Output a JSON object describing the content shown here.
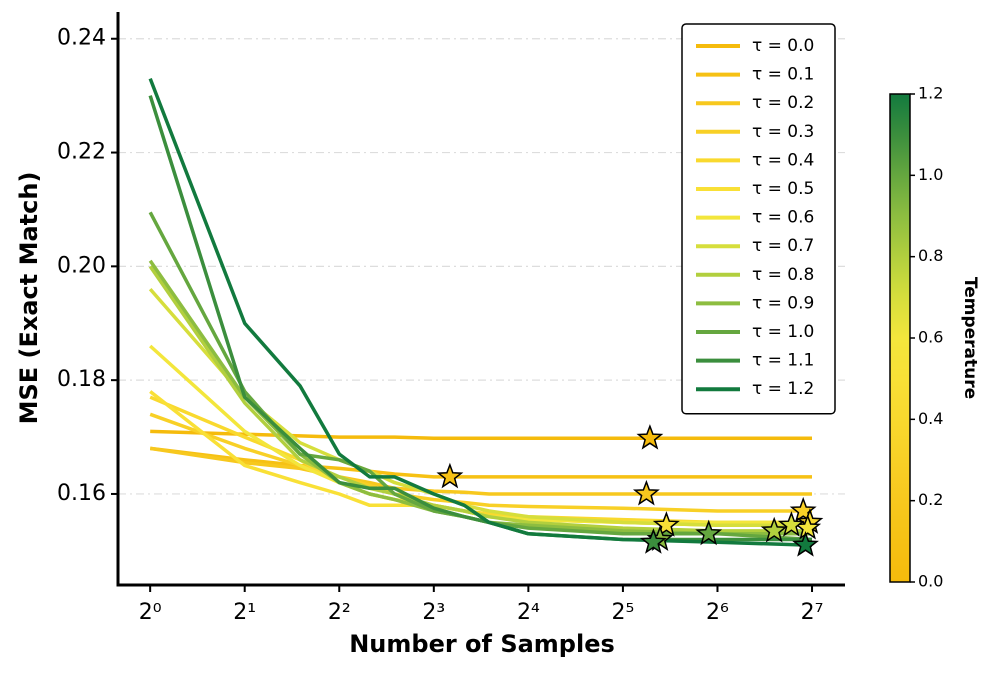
{
  "chart_data": {
    "type": "line",
    "xlabel": "Number of Samples",
    "ylabel": "MSE (Exact Match)",
    "log_x": 2,
    "grid": true,
    "legend": "upper right",
    "x": [
      1,
      2,
      3,
      4,
      5,
      6,
      8,
      10,
      12,
      16,
      32,
      64,
      128
    ],
    "xlim": [
      0.79,
      163
    ],
    "xticks": [
      {
        "value": 1,
        "label": "2⁰"
      },
      {
        "value": 2,
        "label": "2¹"
      },
      {
        "value": 4,
        "label": "2²"
      },
      {
        "value": 8,
        "label": "2³"
      },
      {
        "value": 16,
        "label": "2⁴"
      },
      {
        "value": 32,
        "label": "2⁵"
      },
      {
        "value": 64,
        "label": "2⁶"
      },
      {
        "value": 128,
        "label": "2⁷"
      }
    ],
    "ylim": [
      0.144,
      0.2447
    ],
    "yticks": [
      0.16,
      0.18,
      {
        "value": 0.2,
        "label": "0.20"
      },
      0.22,
      0.24
    ],
    "series": [
      {
        "name": "τ = 0.0",
        "color": "#f5bb0c",
        "values": [
          0.171,
          0.1705,
          0.1702,
          0.17,
          0.17,
          0.17,
          0.1698,
          0.1698,
          0.1698,
          0.1698,
          0.1698,
          0.1698,
          0.1698
        ],
        "star_x": 39,
        "star_y": 0.1698
      },
      {
        "name": "τ = 0.1",
        "color": "#f6c114",
        "values": [
          0.168,
          0.166,
          0.165,
          0.1645,
          0.164,
          0.1635,
          0.163,
          0.163,
          0.163,
          0.163,
          0.163,
          0.163,
          0.163
        ],
        "star_x": 9,
        "star_y": 0.163
      },
      {
        "name": "τ = 0.2",
        "color": "#f7c81e",
        "values": [
          0.168,
          0.1655,
          0.1645,
          0.163,
          0.162,
          0.161,
          0.1605,
          0.1603,
          0.16,
          0.16,
          0.16,
          0.16,
          0.16
        ],
        "star_x": 38,
        "star_y": 0.16
      },
      {
        "name": "τ = 0.3",
        "color": "#f8d026",
        "values": [
          0.174,
          0.168,
          0.165,
          0.163,
          0.1615,
          0.16,
          0.159,
          0.1585,
          0.158,
          0.1578,
          0.1575,
          0.157,
          0.157
        ],
        "star_x": 120,
        "star_y": 0.157
      },
      {
        "name": "τ = 0.4",
        "color": "#f9d92e",
        "values": [
          0.177,
          0.17,
          0.166,
          0.162,
          0.16,
          0.159,
          0.158,
          0.157,
          0.1565,
          0.156,
          0.1555,
          0.155,
          0.155
        ],
        "star_x": 126,
        "star_y": 0.155
      },
      {
        "name": "τ = 0.5",
        "color": "#f9e036",
        "values": [
          0.178,
          0.165,
          0.162,
          0.16,
          0.158,
          0.158,
          0.158,
          0.157,
          0.156,
          0.1555,
          0.155,
          0.1545,
          0.1545
        ],
        "star_x": 44,
        "star_y": 0.1545
      },
      {
        "name": "τ = 0.6",
        "color": "#f3e63c",
        "values": [
          0.186,
          0.171,
          0.165,
          0.162,
          0.16,
          0.159,
          0.158,
          0.157,
          0.156,
          0.1555,
          0.155,
          0.155,
          0.155
        ],
        "star_x": 124,
        "star_y": 0.154
      },
      {
        "name": "τ = 0.7",
        "color": "#d6de3c",
        "values": [
          0.196,
          0.177,
          0.169,
          0.166,
          0.164,
          0.162,
          0.16,
          0.158,
          0.157,
          0.156,
          0.155,
          0.1545,
          0.1545
        ],
        "star_x": 110,
        "star_y": 0.1545
      },
      {
        "name": "τ = 0.8",
        "color": "#b2cf3e",
        "values": [
          0.2,
          0.176,
          0.166,
          0.163,
          0.161,
          0.16,
          0.158,
          0.157,
          0.156,
          0.155,
          0.154,
          0.1535,
          0.1535
        ],
        "star_x": 97,
        "star_y": 0.1535
      },
      {
        "name": "τ = 0.9",
        "color": "#8dbd40",
        "values": [
          0.201,
          0.177,
          0.167,
          0.162,
          0.16,
          0.159,
          0.157,
          0.156,
          0.155,
          0.1545,
          0.1535,
          0.153,
          0.153
        ],
        "star_x": 42,
        "star_y": 0.152
      },
      {
        "name": "τ = 1.0",
        "color": "#65a73f",
        "values": [
          0.2095,
          0.178,
          0.167,
          0.166,
          0.164,
          0.16,
          0.157,
          0.156,
          0.155,
          0.154,
          0.153,
          0.153,
          0.152
        ],
        "star_x": 60,
        "star_y": 0.153
      },
      {
        "name": "τ = 1.1",
        "color": "#3b8e3d",
        "values": [
          0.23,
          0.177,
          0.168,
          0.162,
          0.161,
          0.161,
          0.1575,
          0.156,
          0.155,
          0.153,
          0.152,
          0.152,
          0.152
        ],
        "star_x": 40,
        "star_y": 0.1515
      },
      {
        "name": "τ = 1.2",
        "color": "#127a3e",
        "values": [
          0.233,
          0.19,
          0.179,
          0.167,
          0.163,
          0.163,
          0.16,
          0.158,
          0.155,
          0.153,
          0.152,
          0.1515,
          0.151
        ],
        "star_x": 122,
        "star_y": 0.151
      }
    ],
    "colorbar": {
      "label": "Temperature",
      "lim": [
        0,
        1.2
      ],
      "ticks": [
        {
          "value": 0,
          "label": "0.0"
        },
        0.2,
        0.4,
        0.6,
        0.8,
        {
          "value": 1,
          "label": "1.0"
        },
        1.2
      ]
    }
  }
}
